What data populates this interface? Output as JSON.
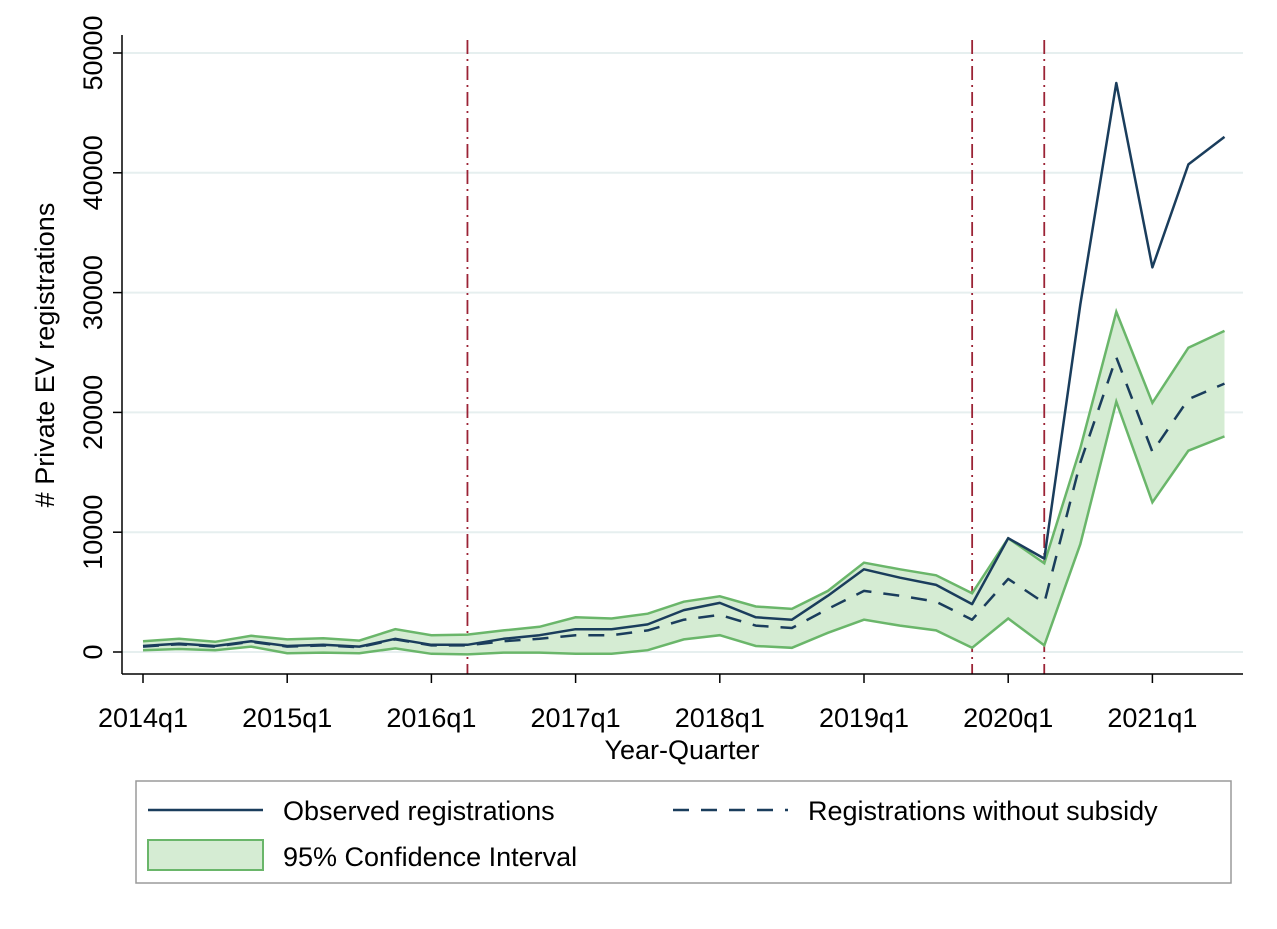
{
  "chart_data": {
    "type": "line",
    "xlabel": "Year-Quarter",
    "ylabel": "# Private EV registrations",
    "ylim": [
      0,
      50000
    ],
    "y_ticks": [
      0,
      10000,
      20000,
      30000,
      40000,
      50000
    ],
    "y_tick_labels": [
      "0",
      "10000",
      "20000",
      "30000",
      "40000",
      "50000"
    ],
    "x_ticks": [
      "2014q1",
      "2015q1",
      "2016q1",
      "2017q1",
      "2018q1",
      "2019q1",
      "2020q1",
      "2021q1"
    ],
    "x": [
      "2014q1",
      "2014q2",
      "2014q3",
      "2014q4",
      "2015q1",
      "2015q2",
      "2015q3",
      "2015q4",
      "2016q1",
      "2016q2",
      "2016q3",
      "2016q4",
      "2017q1",
      "2017q2",
      "2017q3",
      "2017q4",
      "2018q1",
      "2018q2",
      "2018q3",
      "2018q4",
      "2019q1",
      "2019q2",
      "2019q3",
      "2019q4",
      "2020q1",
      "2020q2",
      "2020q3",
      "2020q4",
      "2021q1",
      "2021q2",
      "2021q3"
    ],
    "vertical_lines": [
      "2016q2",
      "2019q4",
      "2020q2"
    ],
    "grid": true,
    "legend_position": "bottom",
    "series": [
      {
        "name": "Observed registrations",
        "style": "solid",
        "color": "#1a3d5c",
        "values": [
          500,
          700,
          500,
          900,
          500,
          600,
          450,
          1100,
          600,
          600,
          1100,
          1400,
          1900,
          1900,
          2300,
          3500,
          4100,
          2900,
          2700,
          4700,
          6900,
          6200,
          5600,
          4000,
          9500,
          7800,
          29000,
          47500,
          32100,
          40700,
          43000
        ]
      },
      {
        "name": "Registrations without subsidy",
        "style": "dashed",
        "color": "#1a3d5c",
        "values": [
          450,
          650,
          450,
          850,
          450,
          550,
          400,
          1050,
          550,
          550,
          900,
          1100,
          1400,
          1400,
          1800,
          2700,
          3100,
          2200,
          2000,
          3600,
          5100,
          4700,
          4200,
          2700,
          6100,
          4100,
          15800,
          24600,
          16700,
          21100,
          22400
        ]
      },
      {
        "name": "95% Confidence Interval",
        "style": "band",
        "color": "#d5ecd3",
        "edge_color": "#6ab66a",
        "upper": [
          900,
          1100,
          850,
          1350,
          1050,
          1150,
          950,
          1900,
          1400,
          1450,
          1800,
          2100,
          2900,
          2800,
          3200,
          4200,
          4650,
          3800,
          3600,
          5100,
          7450,
          6900,
          6400,
          4900,
          9500,
          7400,
          17000,
          28400,
          20800,
          25400,
          26800
        ],
        "lower": [
          150,
          250,
          150,
          450,
          -100,
          -50,
          -100,
          300,
          -150,
          -200,
          -50,
          -50,
          -150,
          -150,
          150,
          1050,
          1400,
          500,
          350,
          1600,
          2700,
          2200,
          1800,
          350,
          2800,
          550,
          9000,
          20900,
          12500,
          16800,
          18000
        ]
      }
    ],
    "legend": {
      "observed": "Observed registrations",
      "without_subsidy": "Registrations without subsidy",
      "ci": "95% Confidence Interval"
    }
  }
}
